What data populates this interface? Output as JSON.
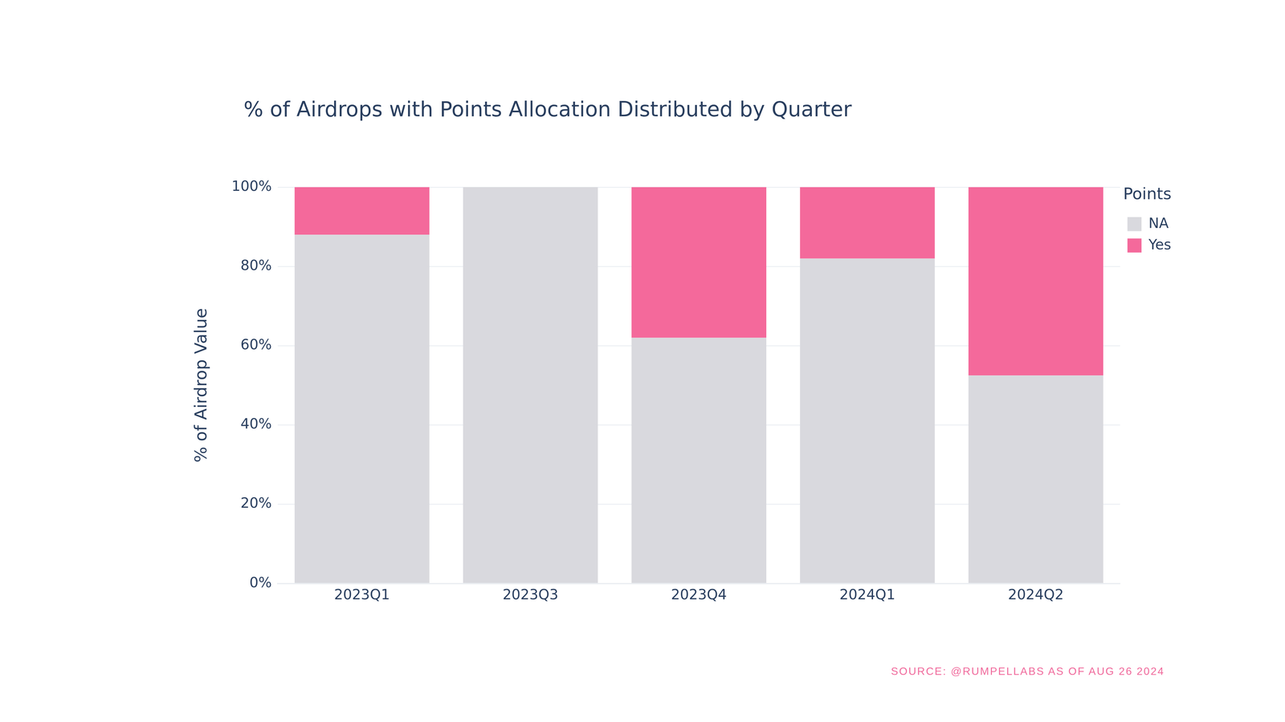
{
  "chart_data": {
    "type": "bar",
    "title": "% of Airdrops with Points Allocation Distributed by Quarter",
    "y_label": "% of Airdrop Value",
    "legend_title": "Points",
    "source": "SOURCE: @RUMPELLABS AS OF AUG 26 2024",
    "categories": [
      "2023Q1",
      "2023Q3",
      "2023Q4",
      "2024Q1",
      "2024Q2"
    ],
    "series": [
      {
        "name": "NA",
        "color": "#d9d9de",
        "values": [
          88,
          100,
          62,
          82,
          52.5
        ]
      },
      {
        "name": "Yes",
        "color": "#f4699b",
        "values": [
          12,
          0,
          38,
          18,
          47.5
        ]
      }
    ],
    "stacked": true,
    "ylim": [
      0,
      100
    ],
    "yticks": [
      {
        "value": 0,
        "label": "0%"
      },
      {
        "value": 20,
        "label": "20%"
      },
      {
        "value": 40,
        "label": "40%"
      },
      {
        "value": 60,
        "label": "60%"
      },
      {
        "value": 80,
        "label": "80%"
      },
      {
        "value": 100,
        "label": "100%"
      }
    ],
    "grid": true,
    "legend": "top-right"
  }
}
